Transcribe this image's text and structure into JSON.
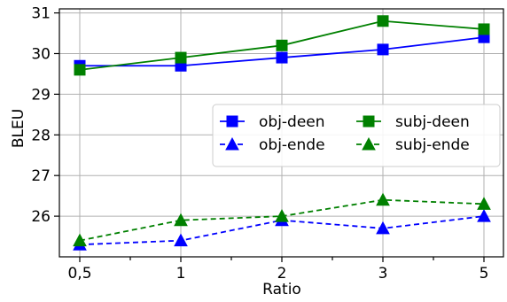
{
  "chart_data": {
    "type": "line",
    "xlabel": "Ratio",
    "ylabel": "BLEU",
    "categories": [
      "0,5",
      "1",
      "2",
      "3",
      "5"
    ],
    "ylim": [
      25.0,
      31.1
    ],
    "yticks": [
      26,
      27,
      28,
      29,
      30,
      31
    ],
    "grid": true,
    "legend": {
      "placement": "center-right",
      "columns": 2
    },
    "series": [
      {
        "name": "obj-deen",
        "values": [
          29.7,
          29.7,
          29.9,
          30.1,
          30.4
        ],
        "color": "#0000ff",
        "marker": "square",
        "linestyle": "solid"
      },
      {
        "name": "subj-deen",
        "values": [
          29.6,
          29.9,
          30.2,
          30.8,
          30.6
        ],
        "color": "#008000",
        "marker": "square",
        "linestyle": "solid"
      },
      {
        "name": "obj-ende",
        "values": [
          25.3,
          25.4,
          25.9,
          25.7,
          26.0
        ],
        "color": "#0000ff",
        "marker": "triangle",
        "linestyle": "dashed"
      },
      {
        "name": "subj-ende",
        "values": [
          25.4,
          25.9,
          26.0,
          26.4,
          26.3
        ],
        "color": "#008000",
        "marker": "triangle",
        "linestyle": "dashed"
      }
    ]
  }
}
